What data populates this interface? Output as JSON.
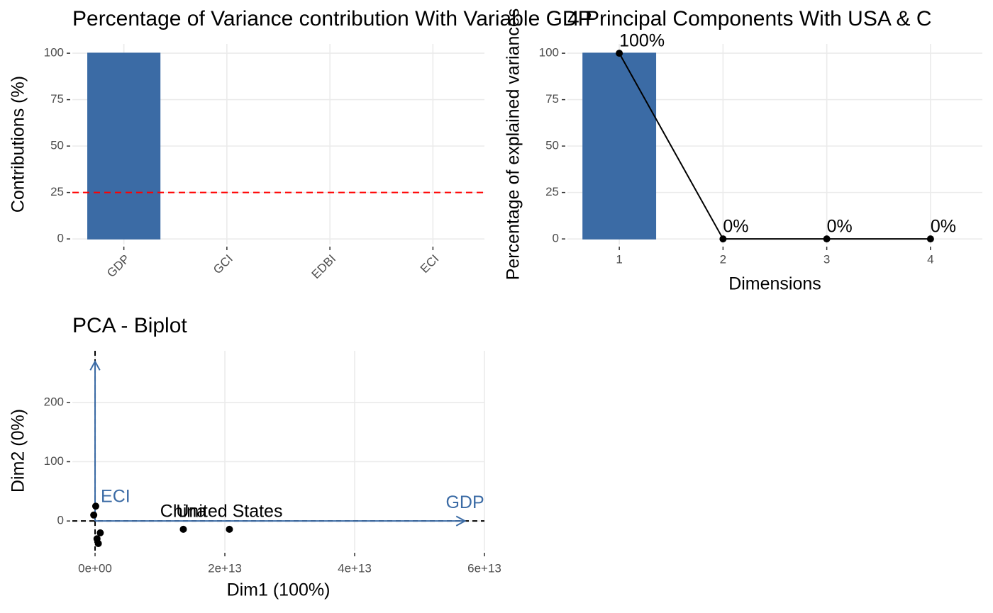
{
  "chart_data": [
    {
      "type": "bar",
      "title": "Percentage of Variance contribution With Variable GDP",
      "y_label": "Contributions (%)",
      "categories": [
        "GDP",
        "GCI",
        "EDBI",
        "ECI"
      ],
      "values": [
        100,
        0,
        0,
        0
      ],
      "color": "#3b6ba5",
      "ylim": [
        -3,
        105
      ],
      "yticks": [
        0,
        25,
        50,
        75,
        100
      ],
      "grid": true,
      "reference_line": 25,
      "reference_color": "#ff0000"
    },
    {
      "type": "scree",
      "title": "4 Principal Components With USA & C",
      "x_label": "Dimensions",
      "y_label": "Percentage of explained variances",
      "categories": [
        "1",
        "2",
        "3",
        "4"
      ],
      "values": [
        100,
        0,
        0,
        0
      ],
      "value_labels": [
        "100%",
        "0%",
        "0%",
        "0%"
      ],
      "color": "#3b6ba5",
      "line_color": "#000000",
      "ylim": [
        -3,
        105
      ],
      "yticks": [
        0,
        25,
        50,
        75,
        100
      ],
      "grid": true
    },
    {
      "type": "biplot",
      "title": "PCA - Biplot",
      "x_label": "Dim1 (100%)",
      "y_label": "Dim2 (0%)",
      "x": [
        20700000000000,
        13600000000000,
        300000000000,
        500000000000,
        -200000000000,
        100000000000,
        800000000000
      ],
      "values": [
        -14,
        -14,
        -30,
        -38,
        10,
        25,
        -20
      ],
      "point_labels": [
        "United States",
        "China",
        null,
        null,
        null,
        null,
        null
      ],
      "arrows": [
        {
          "name": "GDP",
          "x": 57000000000000,
          "y": 0
        },
        {
          "name": "ECI",
          "x": 0,
          "y": 269
        }
      ],
      "color": "#000000",
      "arrow_color": "#3b6ba5",
      "xlim": [
        -3500000000000,
        60000000000000
      ],
      "ylim": [
        -50,
        287
      ],
      "xticks": [
        {
          "value": 0,
          "label": "0e+00"
        },
        {
          "value": 20000000000000,
          "label": "2e+13"
        },
        {
          "value": 40000000000000,
          "label": "4e+13"
        },
        {
          "value": 60000000000000,
          "label": "6e+13"
        }
      ],
      "yticks": [
        0,
        100,
        200
      ],
      "grid": true
    }
  ]
}
